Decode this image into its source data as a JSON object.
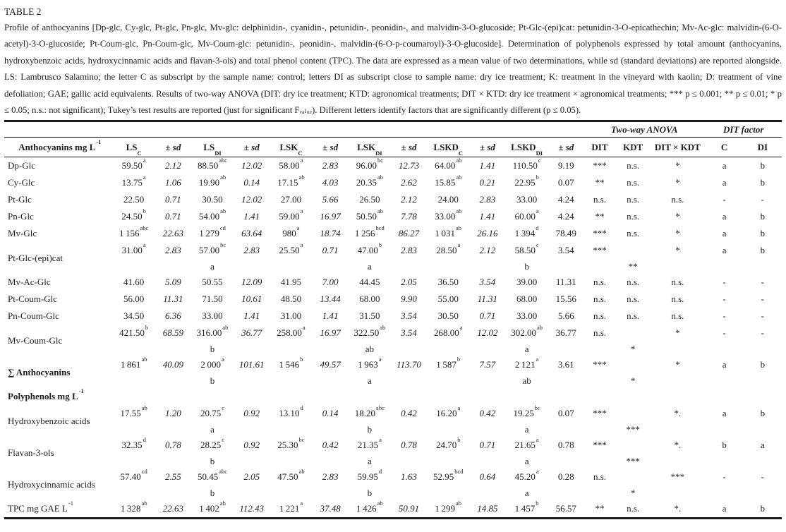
{
  "caption": {
    "title": "TABLE 2",
    "text": "Profile of anthocyanins [Dp-glc, Cy-glc, Pt-glc, Pn-glc, Mv-glc: delphinidin-, cyanidin-, petunidin-, peonidin-, and malvidin-3-O-glucoside; Pt-Glc-(epi)cat: petunidin-3-O-epicathechin; Mv-Ac-glc: malvidin-(6-O-acetyl)-3-O-glucoside; Pt-Coum-glc, Pn-Coum-glc, Mv-Coum-glc: petunidin-, peonidin-, malvidin-(6-O-p-coumaroyl)-3-O-glucoside]. Determination of polyphenols expressed by total amount (anthocyanins, hydroxybenzoic acids, hydroxycinnamic acids and flavan-3-ols) and total phenol content (TPC). The data are expressed as a mean value of two determinations, while sd (standard deviations) are reported alongside. LS: Lambrusco Salamino; the letter C as subscript by the sample name: control; letters DI as subscript close to sample name: dry ice treatment; K: treatment in the vineyard with kaolin; D: treatment of vine defoliation; GAE; gallic acid equivalents. Results of two-way ANOVA (DIT: dry ice treatment; KTD: agronomical treatments; DIT × KTD: dry ice treatment × agronomical treatments; *** p ≤ 0.001; ** p ≤ 0.01; * p ≤ 0.05; n.s.: not significant); Tukey’s test results are reported (just for significant Fᵥₐₗᵤₑ). Different letters identify factors that are significantly different (p ≤ 0.05)."
  },
  "table": {
    "group_headers": {
      "anova": "Two-way ANOVA",
      "factor": "DIT factor"
    },
    "first_col_header": {
      "label": "Anthocyanins mg L",
      "sup": "-1"
    },
    "sd_header": {
      "pm": "±",
      "sd": "sd"
    },
    "sample_headers": [
      {
        "base": "LS",
        "sub": "C"
      },
      {
        "base": "LS",
        "sub": "DI"
      },
      {
        "base": "LSK",
        "sub": "C"
      },
      {
        "base": "LSK",
        "sub": "DI"
      },
      {
        "base": "LSKD",
        "sub": "C"
      },
      {
        "base": "LSKD",
        "sub": "DI"
      }
    ],
    "anova_headers": [
      "DIT",
      "KDT",
      "DIT × KDT"
    ],
    "factor_headers": [
      "C",
      "DI"
    ],
    "rows": [
      {
        "label": "Dp-Glc",
        "cells": [
          [
            "59.50",
            "a",
            "2.12"
          ],
          [
            "88.50",
            "abc",
            "12.02"
          ],
          [
            "58.00",
            "a",
            "2.83"
          ],
          [
            "96.00",
            "bc",
            "12.73"
          ],
          [
            "64.00",
            "ab",
            "1.41"
          ],
          [
            "110.50",
            "c",
            "9.19"
          ]
        ],
        "dit": "***",
        "kdt": "n.s.",
        "ditkdt": "*",
        "c": "a",
        "di": "b"
      },
      {
        "label": "Cy-Glc",
        "cells": [
          [
            "13.75",
            "a",
            "1.06"
          ],
          [
            "19.90",
            "ab",
            "0.14"
          ],
          [
            "17.15",
            "ab",
            "4.03"
          ],
          [
            "20.35",
            "ab",
            "2.62"
          ],
          [
            "15.85",
            "ab",
            "0.21"
          ],
          [
            "22.95",
            "b",
            "0.07"
          ]
        ],
        "dit": "**",
        "kdt": "n.s.",
        "ditkdt": "*",
        "c": "a",
        "di": "b"
      },
      {
        "label": "Pt-Glc",
        "cells": [
          [
            "22.50",
            "",
            "0.71"
          ],
          [
            "30.50",
            "",
            "12.02"
          ],
          [
            "27.00",
            "",
            "5.66"
          ],
          [
            "26.50",
            "",
            "2.12"
          ],
          [
            "24.00",
            "",
            "2.83"
          ],
          [
            "33.00",
            "",
            "4.24"
          ]
        ],
        "dit": "n.s.",
        "kdt": "n.s.",
        "ditkdt": "n.s.",
        "c": "-",
        "di": "-"
      },
      {
        "label": "Pn-Glc",
        "cells": [
          [
            "24.50",
            "b",
            "0.71"
          ],
          [
            "54.00",
            "ab",
            "1.41"
          ],
          [
            "59.00",
            "a",
            "16.97"
          ],
          [
            "50.50",
            "ab",
            "7.78"
          ],
          [
            "33.00",
            "ab",
            "1.41"
          ],
          [
            "60.00",
            "a",
            "4.24"
          ]
        ],
        "dit": "**",
        "kdt": "n.s.",
        "ditkdt": "*",
        "c": "a",
        "di": "b"
      },
      {
        "label": "Mv-Glc",
        "cells": [
          [
            "1 156",
            "abc",
            "22.63"
          ],
          [
            "1 279",
            "cd",
            "63.64"
          ],
          [
            "980",
            "a",
            "18.74"
          ],
          [
            "1 256",
            "bcd",
            "86.27"
          ],
          [
            "1 031",
            "ab",
            "26.16"
          ],
          [
            "1 394",
            "d",
            "78.49"
          ]
        ],
        "dit": "***",
        "kdt": "n.s.",
        "ditkdt": "*",
        "c": "a",
        "di": "b"
      },
      {
        "label": "Pt-Glc-(epi)cat",
        "cells": [
          [
            "31.00",
            "a",
            "2.83"
          ],
          [
            "57.00",
            "bc",
            "2.83"
          ],
          [
            "25.50",
            "a",
            "0.71"
          ],
          [
            "47.00",
            "b",
            "2.83"
          ],
          [
            "28.50",
            "a",
            "2.12"
          ],
          [
            "58.50",
            "c",
            "3.54"
          ]
        ],
        "dit": "***",
        "kdt": "",
        "ditkdt": "*",
        "c": "a",
        "di": "b",
        "tukey": {
          "ls": "a",
          "lsk": "a",
          "lskd": "b",
          "kdt": "**"
        }
      },
      {
        "label": "Mv-Ac-Glc",
        "cells": [
          [
            "41.60",
            "",
            "5.09"
          ],
          [
            "50.55",
            "",
            "12.09"
          ],
          [
            "41.95",
            "",
            "7.00"
          ],
          [
            "44.45",
            "",
            "2.05"
          ],
          [
            "36.50",
            "",
            "3.54"
          ],
          [
            "39.00",
            "",
            "11.31"
          ]
        ],
        "dit": "n.s.",
        "kdt": "n.s.",
        "ditkdt": "n.s.",
        "c": "-",
        "di": "-"
      },
      {
        "label": "Pt-Coum-Glc",
        "cells": [
          [
            "56.00",
            "",
            "11.31"
          ],
          [
            "71.50",
            "",
            "10.61"
          ],
          [
            "48.50",
            "",
            "13.44"
          ],
          [
            "68.00",
            "",
            "9.90"
          ],
          [
            "55.00",
            "",
            "11.31"
          ],
          [
            "68.00",
            "",
            "15.56"
          ]
        ],
        "dit": "n.s.",
        "kdt": "n.s.",
        "ditkdt": "n.s.",
        "c": "-",
        "di": "-"
      },
      {
        "label": "Pn-Coum-Glc",
        "cells": [
          [
            "34.50",
            "",
            "6.36"
          ],
          [
            "33.00",
            "",
            "1.41"
          ],
          [
            "31.00",
            "",
            "1.41"
          ],
          [
            "31.50",
            "",
            "3.54"
          ],
          [
            "30.50",
            "",
            "0.71"
          ],
          [
            "33.00",
            "",
            "5.66"
          ]
        ],
        "dit": "n.s.",
        "kdt": "n.s.",
        "ditkdt": "n.s.",
        "c": "-",
        "di": "-"
      },
      {
        "label": "Mv-Coum-Glc",
        "cells": [
          [
            "421.50",
            "b",
            "68.59"
          ],
          [
            "316.00",
            "ab",
            "36.77"
          ],
          [
            "258.00",
            "a",
            "16.97"
          ],
          [
            "322.50",
            "ab",
            "3.54"
          ],
          [
            "268.00",
            "a",
            "12.02"
          ],
          [
            "302.00",
            "ab",
            "36.77"
          ]
        ],
        "dit": "n.s.",
        "kdt": "",
        "ditkdt": "*",
        "c": "-",
        "di": "-",
        "tukey": {
          "ls": "b",
          "lsk": "ab",
          "lskd": "a",
          "kdt": "*"
        }
      },
      {
        "label": "∑ Anthocyanins",
        "bold": true,
        "cells": [
          [
            "1 861",
            "ab",
            "40.09"
          ],
          [
            "2 000",
            "a",
            "101.61"
          ],
          [
            "1 546",
            "b",
            "49.57"
          ],
          [
            "1 963",
            "a",
            "113.70"
          ],
          [
            "1 587",
            "b",
            "7.57"
          ],
          [
            "2 121",
            "a",
            "3.61"
          ]
        ],
        "dit": "***",
        "kdt": "",
        "ditkdt": "*",
        "c": "a",
        "di": "b",
        "tukey": {
          "ls": "b",
          "lsk": "a",
          "lskd": "ab",
          "kdt": "*"
        }
      },
      {
        "label": "Polyphenols mg L",
        "lsup": "-1",
        "section": true
      },
      {
        "label": "Hydroxybenzoic acids",
        "cells": [
          [
            "17.55",
            "ab",
            "1.20"
          ],
          [
            "20.75",
            "c",
            "0.92"
          ],
          [
            "13.10",
            "d",
            "0.14"
          ],
          [
            "18.20",
            "abc",
            "0.42"
          ],
          [
            "16.20",
            "a",
            "0.42"
          ],
          [
            "19.25",
            "bc",
            "0.07"
          ]
        ],
        "dit": "***",
        "kdt": "",
        "ditkdt": "*.",
        "c": "a",
        "di": "b",
        "tukey": {
          "ls": "a",
          "lsk": "b",
          "lskd": "a",
          "kdt": "***"
        }
      },
      {
        "label": "Flavan-3-ols",
        "cells": [
          [
            "32.35",
            "d",
            "0.78"
          ],
          [
            "28.25",
            "c",
            "0.92"
          ],
          [
            "25.30",
            "bc",
            "0.42"
          ],
          [
            "21.35",
            "a",
            "0.78"
          ],
          [
            "24.70",
            "b",
            "0.71"
          ],
          [
            "21.65",
            "a",
            "0.78"
          ]
        ],
        "dit": "***",
        "kdt": "",
        "ditkdt": "*.",
        "c": "b",
        "di": "a",
        "tukey": {
          "ls": "b",
          "lsk": "a",
          "lskd": "a",
          "kdt": "***"
        }
      },
      {
        "label": "Hydroxycinnamic acids",
        "cells": [
          [
            "57.40",
            "cd",
            "2.55"
          ],
          [
            "50.45",
            "abc",
            "2.05"
          ],
          [
            "47.50",
            "ab",
            "2.83"
          ],
          [
            "59.95",
            "d",
            "1.63"
          ],
          [
            "52.95",
            "bcd",
            "0.64"
          ],
          [
            "45.20",
            "a",
            "0.28"
          ]
        ],
        "dit": "n.s.",
        "kdt": "",
        "ditkdt": "***",
        "c": "-",
        "di": "-",
        "tukey": {
          "ls": "b",
          "lsk": "b",
          "lskd": "a",
          "kdt": "*"
        }
      },
      {
        "label": "TPC mg GAE L",
        "lsup": "-1",
        "cells": [
          [
            "1 328",
            "ab",
            "22.63"
          ],
          [
            "1 402",
            "ab",
            "112.43"
          ],
          [
            "1 221",
            "a",
            "37.48"
          ],
          [
            "1 426",
            "ab",
            "50.91"
          ],
          [
            "1 299",
            "ab",
            "14.85"
          ],
          [
            "1 457",
            "b",
            "56.57"
          ]
        ],
        "dit": "**",
        "kdt": "n.s.",
        "ditkdt": "*.",
        "c": "a",
        "di": "b"
      }
    ]
  }
}
